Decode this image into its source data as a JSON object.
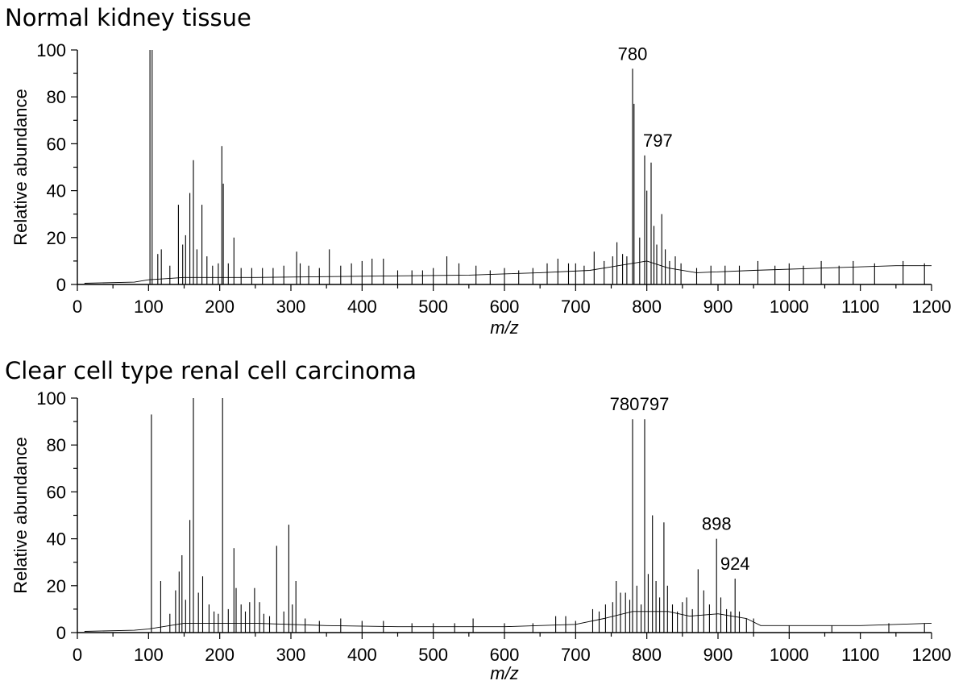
{
  "chart_data": [
    {
      "type": "line",
      "title": "Normal kidney tissue",
      "xlabel": "m/z",
      "ylabel": "Relative abundance",
      "xlim": [
        0,
        1200
      ],
      "ylim": [
        0,
        100
      ],
      "xticks": [
        0,
        100,
        200,
        300,
        400,
        500,
        600,
        700,
        800,
        900,
        1000,
        1100,
        1200
      ],
      "yticks": [
        0,
        20,
        40,
        60,
        80,
        100
      ],
      "grid": false,
      "annotations": [
        {
          "text": "780",
          "x": 780,
          "y": 92
        },
        {
          "text": "797",
          "x": 797,
          "y": 55
        }
      ],
      "baseline": [
        {
          "x": 10,
          "y": 0.5
        },
        {
          "x": 80,
          "y": 1
        },
        {
          "x": 100,
          "y": 2
        },
        {
          "x": 150,
          "y": 3
        },
        {
          "x": 250,
          "y": 3
        },
        {
          "x": 400,
          "y": 3.5
        },
        {
          "x": 550,
          "y": 4
        },
        {
          "x": 650,
          "y": 5
        },
        {
          "x": 720,
          "y": 6
        },
        {
          "x": 760,
          "y": 8
        },
        {
          "x": 800,
          "y": 10
        },
        {
          "x": 830,
          "y": 7
        },
        {
          "x": 870,
          "y": 5
        },
        {
          "x": 950,
          "y": 6
        },
        {
          "x": 1050,
          "y": 7
        },
        {
          "x": 1150,
          "y": 8
        },
        {
          "x": 1200,
          "y": 8
        }
      ],
      "peaks": [
        {
          "x": 102,
          "y": 100
        },
        {
          "x": 105,
          "y": 100
        },
        {
          "x": 113,
          "y": 13
        },
        {
          "x": 118,
          "y": 15
        },
        {
          "x": 130,
          "y": 8
        },
        {
          "x": 142,
          "y": 34
        },
        {
          "x": 148,
          "y": 17
        },
        {
          "x": 152,
          "y": 21
        },
        {
          "x": 158,
          "y": 39
        },
        {
          "x": 163,
          "y": 53
        },
        {
          "x": 168,
          "y": 15
        },
        {
          "x": 175,
          "y": 34
        },
        {
          "x": 182,
          "y": 12
        },
        {
          "x": 190,
          "y": 8
        },
        {
          "x": 198,
          "y": 9
        },
        {
          "x": 203,
          "y": 59
        },
        {
          "x": 205,
          "y": 43
        },
        {
          "x": 212,
          "y": 9
        },
        {
          "x": 220,
          "y": 20
        },
        {
          "x": 230,
          "y": 7
        },
        {
          "x": 245,
          "y": 7
        },
        {
          "x": 260,
          "y": 7
        },
        {
          "x": 275,
          "y": 7
        },
        {
          "x": 290,
          "y": 8
        },
        {
          "x": 308,
          "y": 14
        },
        {
          "x": 313,
          "y": 9
        },
        {
          "x": 325,
          "y": 8
        },
        {
          "x": 340,
          "y": 7
        },
        {
          "x": 354,
          "y": 15
        },
        {
          "x": 370,
          "y": 8
        },
        {
          "x": 385,
          "y": 9
        },
        {
          "x": 400,
          "y": 10
        },
        {
          "x": 414,
          "y": 11
        },
        {
          "x": 430,
          "y": 11
        },
        {
          "x": 450,
          "y": 6
        },
        {
          "x": 470,
          "y": 6
        },
        {
          "x": 485,
          "y": 6
        },
        {
          "x": 500,
          "y": 7
        },
        {
          "x": 519,
          "y": 12
        },
        {
          "x": 536,
          "y": 9
        },
        {
          "x": 560,
          "y": 8
        },
        {
          "x": 580,
          "y": 6
        },
        {
          "x": 600,
          "y": 7
        },
        {
          "x": 620,
          "y": 6
        },
        {
          "x": 640,
          "y": 7
        },
        {
          "x": 660,
          "y": 9
        },
        {
          "x": 675,
          "y": 11
        },
        {
          "x": 690,
          "y": 9
        },
        {
          "x": 700,
          "y": 9
        },
        {
          "x": 712,
          "y": 8
        },
        {
          "x": 726,
          "y": 14
        },
        {
          "x": 740,
          "y": 10
        },
        {
          "x": 752,
          "y": 12
        },
        {
          "x": 758,
          "y": 18
        },
        {
          "x": 766,
          "y": 13
        },
        {
          "x": 772,
          "y": 12
        },
        {
          "x": 780,
          "y": 92
        },
        {
          "x": 782,
          "y": 77
        },
        {
          "x": 790,
          "y": 20
        },
        {
          "x": 797,
          "y": 55
        },
        {
          "x": 800,
          "y": 40
        },
        {
          "x": 806,
          "y": 52
        },
        {
          "x": 810,
          "y": 25
        },
        {
          "x": 814,
          "y": 17
        },
        {
          "x": 821,
          "y": 30
        },
        {
          "x": 826,
          "y": 15
        },
        {
          "x": 832,
          "y": 10
        },
        {
          "x": 840,
          "y": 12
        },
        {
          "x": 848,
          "y": 9
        },
        {
          "x": 870,
          "y": 7
        },
        {
          "x": 890,
          "y": 8
        },
        {
          "x": 910,
          "y": 8
        },
        {
          "x": 930,
          "y": 8
        },
        {
          "x": 956,
          "y": 10
        },
        {
          "x": 980,
          "y": 8
        },
        {
          "x": 1000,
          "y": 9
        },
        {
          "x": 1020,
          "y": 8
        },
        {
          "x": 1045,
          "y": 10
        },
        {
          "x": 1070,
          "y": 8
        },
        {
          "x": 1090,
          "y": 10
        },
        {
          "x": 1120,
          "y": 9
        },
        {
          "x": 1160,
          "y": 10
        },
        {
          "x": 1190,
          "y": 9
        }
      ]
    },
    {
      "type": "line",
      "title": "Clear cell type renal cell carcinoma",
      "xlabel": "m/z",
      "ylabel": "Relative abundance",
      "xlim": [
        0,
        1200
      ],
      "ylim": [
        0,
        100
      ],
      "xticks": [
        0,
        100,
        200,
        300,
        400,
        500,
        600,
        700,
        800,
        900,
        1000,
        1100,
        1200
      ],
      "yticks": [
        0,
        20,
        40,
        60,
        80,
        100
      ],
      "grid": false,
      "annotations": [
        {
          "text": "780",
          "x": 780,
          "y": 91
        },
        {
          "text": "797",
          "x": 797,
          "y": 91
        },
        {
          "text": "898",
          "x": 898,
          "y": 40
        },
        {
          "text": "924",
          "x": 924,
          "y": 23
        }
      ],
      "baseline": [
        {
          "x": 10,
          "y": 0.5
        },
        {
          "x": 80,
          "y": 1
        },
        {
          "x": 100,
          "y": 1.5
        },
        {
          "x": 150,
          "y": 4
        },
        {
          "x": 250,
          "y": 4
        },
        {
          "x": 350,
          "y": 3
        },
        {
          "x": 450,
          "y": 2.5
        },
        {
          "x": 600,
          "y": 2.5
        },
        {
          "x": 700,
          "y": 3.5
        },
        {
          "x": 740,
          "y": 6
        },
        {
          "x": 780,
          "y": 9
        },
        {
          "x": 830,
          "y": 9
        },
        {
          "x": 860,
          "y": 7
        },
        {
          "x": 900,
          "y": 8
        },
        {
          "x": 940,
          "y": 6
        },
        {
          "x": 960,
          "y": 3
        },
        {
          "x": 1000,
          "y": 3
        },
        {
          "x": 1100,
          "y": 3
        },
        {
          "x": 1200,
          "y": 4
        }
      ],
      "peaks": [
        {
          "x": 104,
          "y": 93
        },
        {
          "x": 117,
          "y": 22
        },
        {
          "x": 130,
          "y": 8
        },
        {
          "x": 138,
          "y": 18
        },
        {
          "x": 143,
          "y": 26
        },
        {
          "x": 147,
          "y": 33
        },
        {
          "x": 152,
          "y": 14
        },
        {
          "x": 158,
          "y": 48
        },
        {
          "x": 163,
          "y": 100
        },
        {
          "x": 170,
          "y": 17
        },
        {
          "x": 176,
          "y": 24
        },
        {
          "x": 185,
          "y": 12
        },
        {
          "x": 192,
          "y": 9
        },
        {
          "x": 198,
          "y": 8
        },
        {
          "x": 204,
          "y": 100
        },
        {
          "x": 212,
          "y": 10
        },
        {
          "x": 220,
          "y": 36
        },
        {
          "x": 223,
          "y": 19
        },
        {
          "x": 230,
          "y": 12
        },
        {
          "x": 236,
          "y": 9
        },
        {
          "x": 242,
          "y": 13
        },
        {
          "x": 249,
          "y": 19
        },
        {
          "x": 256,
          "y": 13
        },
        {
          "x": 262,
          "y": 8
        },
        {
          "x": 270,
          "y": 7
        },
        {
          "x": 280,
          "y": 37
        },
        {
          "x": 290,
          "y": 9
        },
        {
          "x": 297,
          "y": 46
        },
        {
          "x": 302,
          "y": 12
        },
        {
          "x": 307,
          "y": 22
        },
        {
          "x": 320,
          "y": 6
        },
        {
          "x": 340,
          "y": 5
        },
        {
          "x": 370,
          "y": 6
        },
        {
          "x": 400,
          "y": 5
        },
        {
          "x": 430,
          "y": 5
        },
        {
          "x": 470,
          "y": 4
        },
        {
          "x": 500,
          "y": 4
        },
        {
          "x": 530,
          "y": 4
        },
        {
          "x": 556,
          "y": 6
        },
        {
          "x": 600,
          "y": 4
        },
        {
          "x": 640,
          "y": 4
        },
        {
          "x": 672,
          "y": 7
        },
        {
          "x": 686,
          "y": 7
        },
        {
          "x": 700,
          "y": 5
        },
        {
          "x": 724,
          "y": 10
        },
        {
          "x": 733,
          "y": 9
        },
        {
          "x": 742,
          "y": 12
        },
        {
          "x": 752,
          "y": 13
        },
        {
          "x": 757,
          "y": 22
        },
        {
          "x": 763,
          "y": 17
        },
        {
          "x": 770,
          "y": 17
        },
        {
          "x": 776,
          "y": 14
        },
        {
          "x": 780,
          "y": 91
        },
        {
          "x": 786,
          "y": 20
        },
        {
          "x": 792,
          "y": 12
        },
        {
          "x": 797,
          "y": 91
        },
        {
          "x": 802,
          "y": 25
        },
        {
          "x": 808,
          "y": 50
        },
        {
          "x": 813,
          "y": 22
        },
        {
          "x": 818,
          "y": 15
        },
        {
          "x": 824,
          "y": 47
        },
        {
          "x": 829,
          "y": 20
        },
        {
          "x": 836,
          "y": 12
        },
        {
          "x": 843,
          "y": 9
        },
        {
          "x": 850,
          "y": 13
        },
        {
          "x": 856,
          "y": 15
        },
        {
          "x": 864,
          "y": 10
        },
        {
          "x": 872,
          "y": 27
        },
        {
          "x": 880,
          "y": 18
        },
        {
          "x": 888,
          "y": 12
        },
        {
          "x": 898,
          "y": 40
        },
        {
          "x": 904,
          "y": 15
        },
        {
          "x": 912,
          "y": 10
        },
        {
          "x": 918,
          "y": 9
        },
        {
          "x": 924,
          "y": 23
        },
        {
          "x": 930,
          "y": 9
        },
        {
          "x": 940,
          "y": 6
        },
        {
          "x": 950,
          "y": 6
        },
        {
          "x": 1000,
          "y": 3
        },
        {
          "x": 1060,
          "y": 3
        },
        {
          "x": 1140,
          "y": 4
        },
        {
          "x": 1190,
          "y": 4
        }
      ]
    }
  ]
}
